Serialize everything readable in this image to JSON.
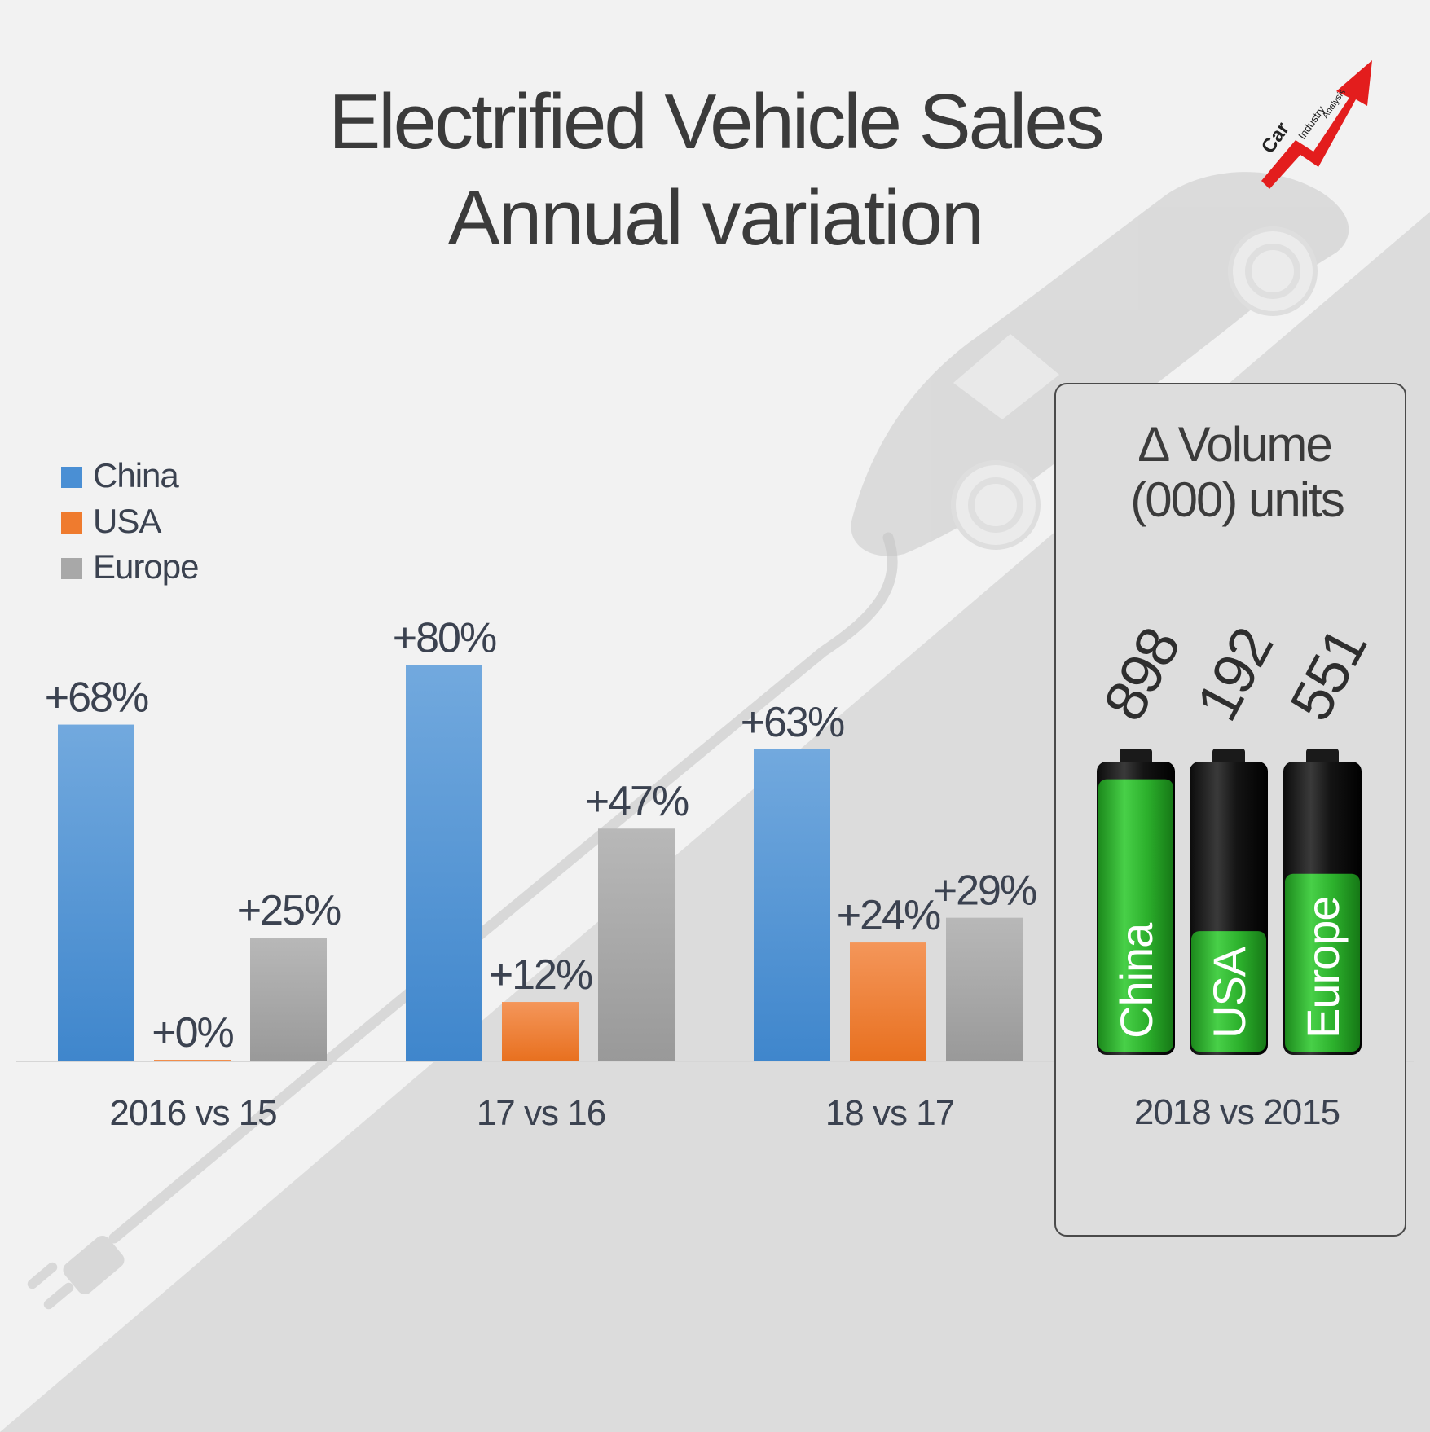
{
  "header": {
    "title_line1": "Electrified Vehicle Sales",
    "title_line2": "Annual variation"
  },
  "logo": {
    "word1": "Car",
    "word2": "Industry",
    "word3": "Analysis"
  },
  "chart_data": {
    "type": "bar",
    "categories": [
      "2016 vs 15",
      "17 vs 16",
      "18 vs 17"
    ],
    "series": [
      {
        "name": "China",
        "values": [
          68,
          80,
          63
        ],
        "labels": [
          "+68%",
          "+80%",
          "+63%"
        ]
      },
      {
        "name": "USA",
        "values": [
          0,
          12,
          24
        ],
        "labels": [
          "+0%",
          "+12%",
          "+24%"
        ]
      },
      {
        "name": "Europe",
        "values": [
          25,
          47,
          29
        ],
        "labels": [
          "+25%",
          "+47%",
          "+29%"
        ]
      }
    ],
    "ylim": [
      0,
      80
    ],
    "grid": false,
    "legend": "top-left"
  },
  "volume_panel": {
    "title_line1": "Δ Volume",
    "title_line2": "(000) units",
    "category": "2018 vs 2015",
    "items": [
      {
        "name": "China",
        "value": "898",
        "fill": 0.95
      },
      {
        "name": "USA",
        "value": "192",
        "fill": 0.42
      },
      {
        "name": "Europe",
        "value": "551",
        "fill": 0.62
      }
    ]
  },
  "colors": {
    "China": "#4a8fd4",
    "USA": "#ef7b2e",
    "Europe": "#a8a8a8",
    "text": "#3b4250",
    "battery_green": "#2fb52f"
  }
}
